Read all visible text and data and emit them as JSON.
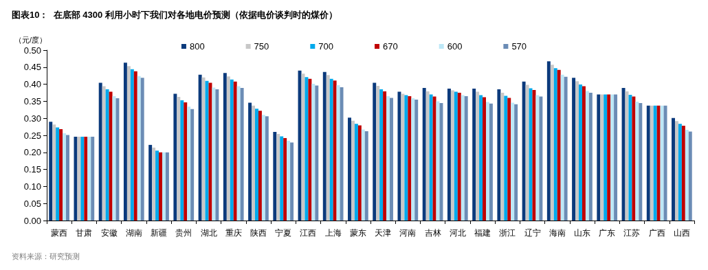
{
  "chart_data": {
    "type": "bar",
    "title": "图表10：  在底部 4300 利用小时下我们对各地电价预测（依据电价谈判时的煤价）",
    "ylabel": "（元/度）",
    "annotations": [
      "资料来源：研究预测"
    ],
    "categories": [
      "蒙西",
      "甘肃",
      "安徽",
      "湖南",
      "新疆",
      "贵州",
      "湖北",
      "重庆",
      "陕西",
      "宁夏",
      "江西",
      "上海",
      "蒙东",
      "天津",
      "河南",
      "吉林",
      "河北",
      "福建",
      "浙江",
      "辽宁",
      "海南",
      "山东",
      "广东",
      "江苏",
      "广西",
      "山西"
    ],
    "series": [
      {
        "name": "800",
        "color": "#0b3a7c",
        "values": [
          0.29,
          0.246,
          0.404,
          0.463,
          0.222,
          0.372,
          0.428,
          0.433,
          0.346,
          0.26,
          0.44,
          0.436,
          0.302,
          0.404,
          0.378,
          0.389,
          0.387,
          0.387,
          0.385,
          0.408,
          0.467,
          0.419,
          0.37,
          0.389,
          0.337,
          0.301
        ]
      },
      {
        "name": "750",
        "color": "#c8c8c8",
        "values": [
          0.282,
          0.246,
          0.394,
          0.453,
          0.214,
          0.363,
          0.42,
          0.423,
          0.337,
          0.254,
          0.431,
          0.427,
          0.293,
          0.395,
          0.372,
          0.379,
          0.382,
          0.378,
          0.375,
          0.398,
          0.457,
          0.409,
          0.37,
          0.379,
          0.337,
          0.292
        ]
      },
      {
        "name": "700",
        "color": "#00a9ec",
        "values": [
          0.273,
          0.246,
          0.385,
          0.444,
          0.205,
          0.353,
          0.41,
          0.414,
          0.328,
          0.247,
          0.421,
          0.416,
          0.284,
          0.385,
          0.368,
          0.37,
          0.378,
          0.368,
          0.366,
          0.388,
          0.447,
          0.399,
          0.37,
          0.369,
          0.337,
          0.284
        ]
      },
      {
        "name": "670",
        "color": "#c00000",
        "values": [
          0.268,
          0.246,
          0.378,
          0.438,
          0.2,
          0.347,
          0.404,
          0.408,
          0.322,
          0.242,
          0.416,
          0.411,
          0.279,
          0.379,
          0.365,
          0.364,
          0.375,
          0.362,
          0.36,
          0.383,
          0.442,
          0.394,
          0.37,
          0.364,
          0.337,
          0.278
        ]
      },
      {
        "name": "600",
        "color": "#bde8f7",
        "values": [
          0.256,
          0.246,
          0.365,
          0.424,
          0.2,
          0.334,
          0.39,
          0.394,
          0.31,
          0.234,
          0.401,
          0.397,
          0.267,
          0.365,
          0.359,
          0.35,
          0.368,
          0.348,
          0.346,
          0.368,
          0.428,
          0.38,
          0.37,
          0.349,
          0.337,
          0.266
        ]
      },
      {
        "name": "570",
        "color": "#6b8cb5",
        "values": [
          0.251,
          0.246,
          0.359,
          0.419,
          0.2,
          0.327,
          0.385,
          0.389,
          0.306,
          0.229,
          0.396,
          0.391,
          0.262,
          0.36,
          0.355,
          0.345,
          0.365,
          0.343,
          0.341,
          0.364,
          0.422,
          0.375,
          0.37,
          0.345,
          0.337,
          0.261
        ]
      }
    ],
    "ylim": [
      0,
      0.5
    ],
    "yticks": [
      {
        "value": 0,
        "label": "0.00"
      },
      {
        "value": 0.05,
        "label": "0.05"
      },
      {
        "value": 0.1,
        "label": "0.10"
      },
      {
        "value": 0.15,
        "label": "0.15"
      },
      {
        "value": 0.2,
        "label": "0.20"
      },
      {
        "value": 0.25,
        "label": "0.25"
      },
      {
        "value": 0.3,
        "label": "0.30"
      },
      {
        "value": 0.35,
        "label": "0.35"
      },
      {
        "value": 0.4,
        "label": "0.40"
      },
      {
        "value": 0.45,
        "label": "0.45"
      },
      {
        "value": 0.5,
        "label": "0.50"
      }
    ],
    "grid": false,
    "legend": "top"
  }
}
